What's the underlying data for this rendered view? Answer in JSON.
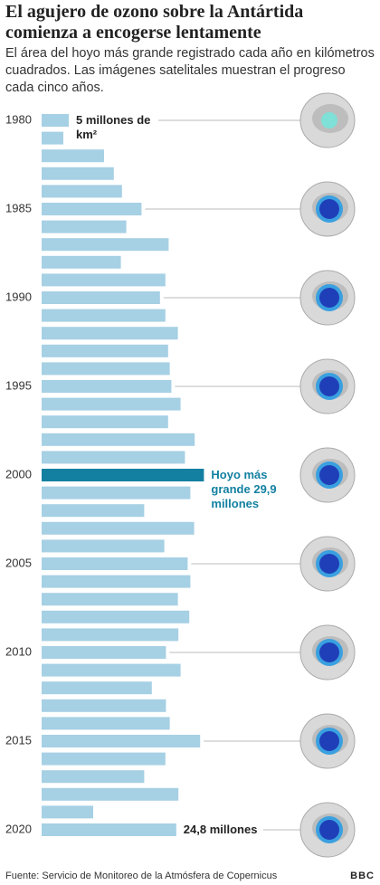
{
  "header": {
    "title": "El agujero de ozono sobre la Antártida comienza a encogerse lentamente",
    "subtitle": "El área del hoyo más grande registrado cada año en kilómetros cuadrados. Las imágenes satelitales muestran el progreso cada cinco años."
  },
  "chart_data": {
    "type": "bar",
    "orientation": "horizontal",
    "categories": [
      "1980",
      null,
      null,
      null,
      null,
      "1985",
      null,
      null,
      null,
      null,
      "1990",
      null,
      null,
      null,
      null,
      "1995",
      null,
      null,
      null,
      null,
      "2000",
      null,
      null,
      null,
      null,
      "2005",
      null,
      null,
      null,
      null,
      "2010",
      null,
      null,
      null,
      null,
      "2015",
      null,
      null,
      null,
      null,
      "2020"
    ],
    "values": [
      5,
      4,
      11.5,
      13.3,
      14.8,
      18.4,
      15.6,
      23.4,
      14.6,
      22.8,
      21.8,
      22.8,
      25.1,
      23.3,
      23.6,
      23.9,
      25.6,
      23.3,
      28.2,
      26.4,
      29.9,
      27.4,
      18.9,
      28.1,
      22.6,
      26.9,
      27.4,
      25.1,
      27.2,
      25.2,
      22.9,
      25.6,
      20.3,
      22.9,
      23.6,
      29.2,
      22.8,
      18.9,
      25.2,
      9.5,
      24.8
    ],
    "value_labels": [
      "5 millones de km²",
      null,
      null,
      null,
      null,
      null,
      null,
      null,
      null,
      null,
      null,
      null,
      null,
      null,
      null,
      null,
      null,
      null,
      null,
      null,
      "Hoyo más grande 29,9 millones",
      null,
      null,
      null,
      null,
      null,
      null,
      null,
      null,
      null,
      null,
      null,
      null,
      null,
      null,
      null,
      null,
      null,
      null,
      null,
      "24,8 millones"
    ],
    "colors": [
      "#a6d0e4",
      "#a6d0e4",
      "#a6d0e4",
      "#a6d0e4",
      "#a6d0e4",
      "#a6d0e4",
      "#a6d0e4",
      "#a6d0e4",
      "#a6d0e4",
      "#a6d0e4",
      "#a6d0e4",
      "#a6d0e4",
      "#a6d0e4",
      "#a6d0e4",
      "#a6d0e4",
      "#a6d0e4",
      "#a6d0e4",
      "#a6d0e4",
      "#a6d0e4",
      "#a6d0e4",
      "#1380a1",
      "#a6d0e4",
      "#a6d0e4",
      "#a6d0e4",
      "#a6d0e4",
      "#a6d0e4",
      "#a6d0e4",
      "#a6d0e4",
      "#a6d0e4",
      "#a6d0e4",
      "#a6d0e4",
      "#a6d0e4",
      "#a6d0e4",
      "#a6d0e4",
      "#a6d0e4",
      "#a6d0e4",
      "#a6d0e4",
      "#a6d0e4",
      "#a6d0e4",
      "#a6d0e4",
      "#a6d0e4"
    ],
    "xlim": [
      0,
      30
    ]
  },
  "footer": {
    "source": "Fuente: Servicio de Monitoreo de la Atmósfera de Copernicus",
    "logo": "BBC"
  }
}
